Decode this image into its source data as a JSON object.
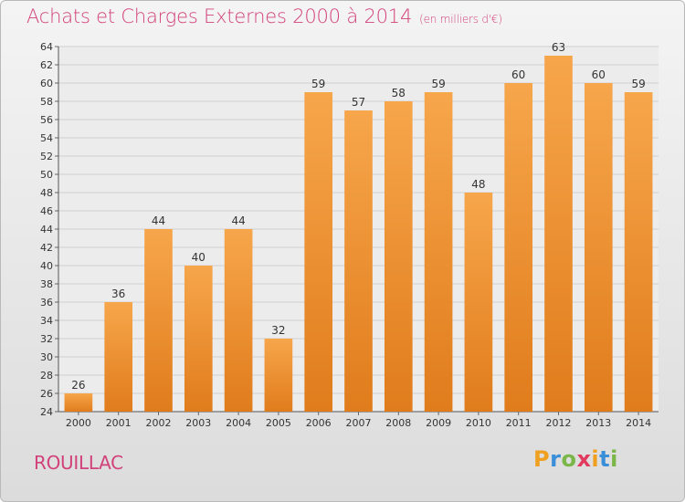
{
  "header": {
    "title": "Achats et Charges Externes 2000 à 2014",
    "unit": "(en milliers d'€)"
  },
  "location": "ROUILLAC",
  "brand": {
    "name": "Proxiti",
    "letters": [
      {
        "ch": "P",
        "color": "#f0a020"
      },
      {
        "ch": "r",
        "color": "#3a8fd8"
      },
      {
        "ch": "o",
        "color": "#7ab648"
      },
      {
        "ch": "x",
        "color": "#e23a5e"
      },
      {
        "ch": "i",
        "color": "#f0a020"
      },
      {
        "ch": "t",
        "color": "#3a8fd8"
      },
      {
        "ch": "i",
        "color": "#7ab648"
      }
    ]
  },
  "colors": {
    "bar_light": "#f7a64b",
    "bar_dark": "#e07c1c",
    "title": "#d2427a"
  },
  "chart_data": {
    "type": "bar",
    "title": "Achats et Charges Externes 2000 à 2014",
    "subtitle": "(en milliers d'€)",
    "categories": [
      "2000",
      "2001",
      "2002",
      "2003",
      "2004",
      "2005",
      "2006",
      "2007",
      "2008",
      "2009",
      "2010",
      "2011",
      "2012",
      "2013",
      "2014"
    ],
    "values": [
      26,
      36,
      44,
      40,
      44,
      32,
      59,
      57,
      58,
      59,
      48,
      60,
      63,
      60,
      59
    ],
    "ylim": [
      24,
      64
    ],
    "yticks": [
      24,
      26,
      28,
      30,
      32,
      34,
      36,
      38,
      40,
      42,
      44,
      46,
      48,
      50,
      52,
      54,
      56,
      58,
      60,
      62,
      64
    ],
    "grid": true
  }
}
